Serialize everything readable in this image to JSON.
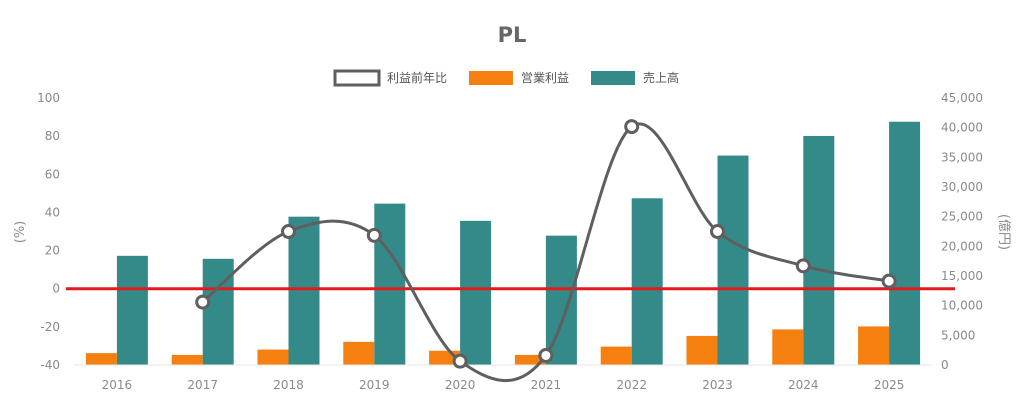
{
  "chart_data": {
    "type": "bar",
    "title": "PL",
    "categories": [
      "2016",
      "2017",
      "2018",
      "2019",
      "2020",
      "2021",
      "2022",
      "2023",
      "2024",
      "2025"
    ],
    "series": [
      {
        "name": "利益前年比",
        "kind": "line",
        "axis": "left",
        "color": "#5f5f5f",
        "values": [
          null,
          -7,
          30,
          28,
          -38,
          -35,
          85,
          30,
          12,
          4
        ]
      },
      {
        "name": "営業利益",
        "kind": "bar",
        "axis": "right",
        "color": "#f57f0f",
        "values": [
          2000,
          1700,
          2600,
          3900,
          2400,
          1700,
          3100,
          4900,
          6000,
          6500
        ]
      },
      {
        "name": "売上高",
        "kind": "bar",
        "axis": "right",
        "color": "#348a88",
        "values": [
          18400,
          17900,
          25000,
          27200,
          24300,
          21800,
          28100,
          35300,
          38600,
          41000
        ]
      }
    ],
    "y_left": {
      "label": "(%)",
      "ticks": [
        "100",
        "80",
        "60",
        "40",
        "20",
        "0",
        "-20",
        "-40"
      ],
      "range": [
        -40,
        100
      ]
    },
    "y_right": {
      "label": "(億円)",
      "ticks": [
        "45,000",
        "40,000",
        "35,000",
        "30,000",
        "25,000",
        "20,000",
        "15,000",
        "10,000",
        "5,000",
        "0"
      ],
      "range": [
        0,
        45000
      ]
    },
    "zero_line_color": "#e41a1a",
    "legend_position": "top-center",
    "grid": false
  }
}
